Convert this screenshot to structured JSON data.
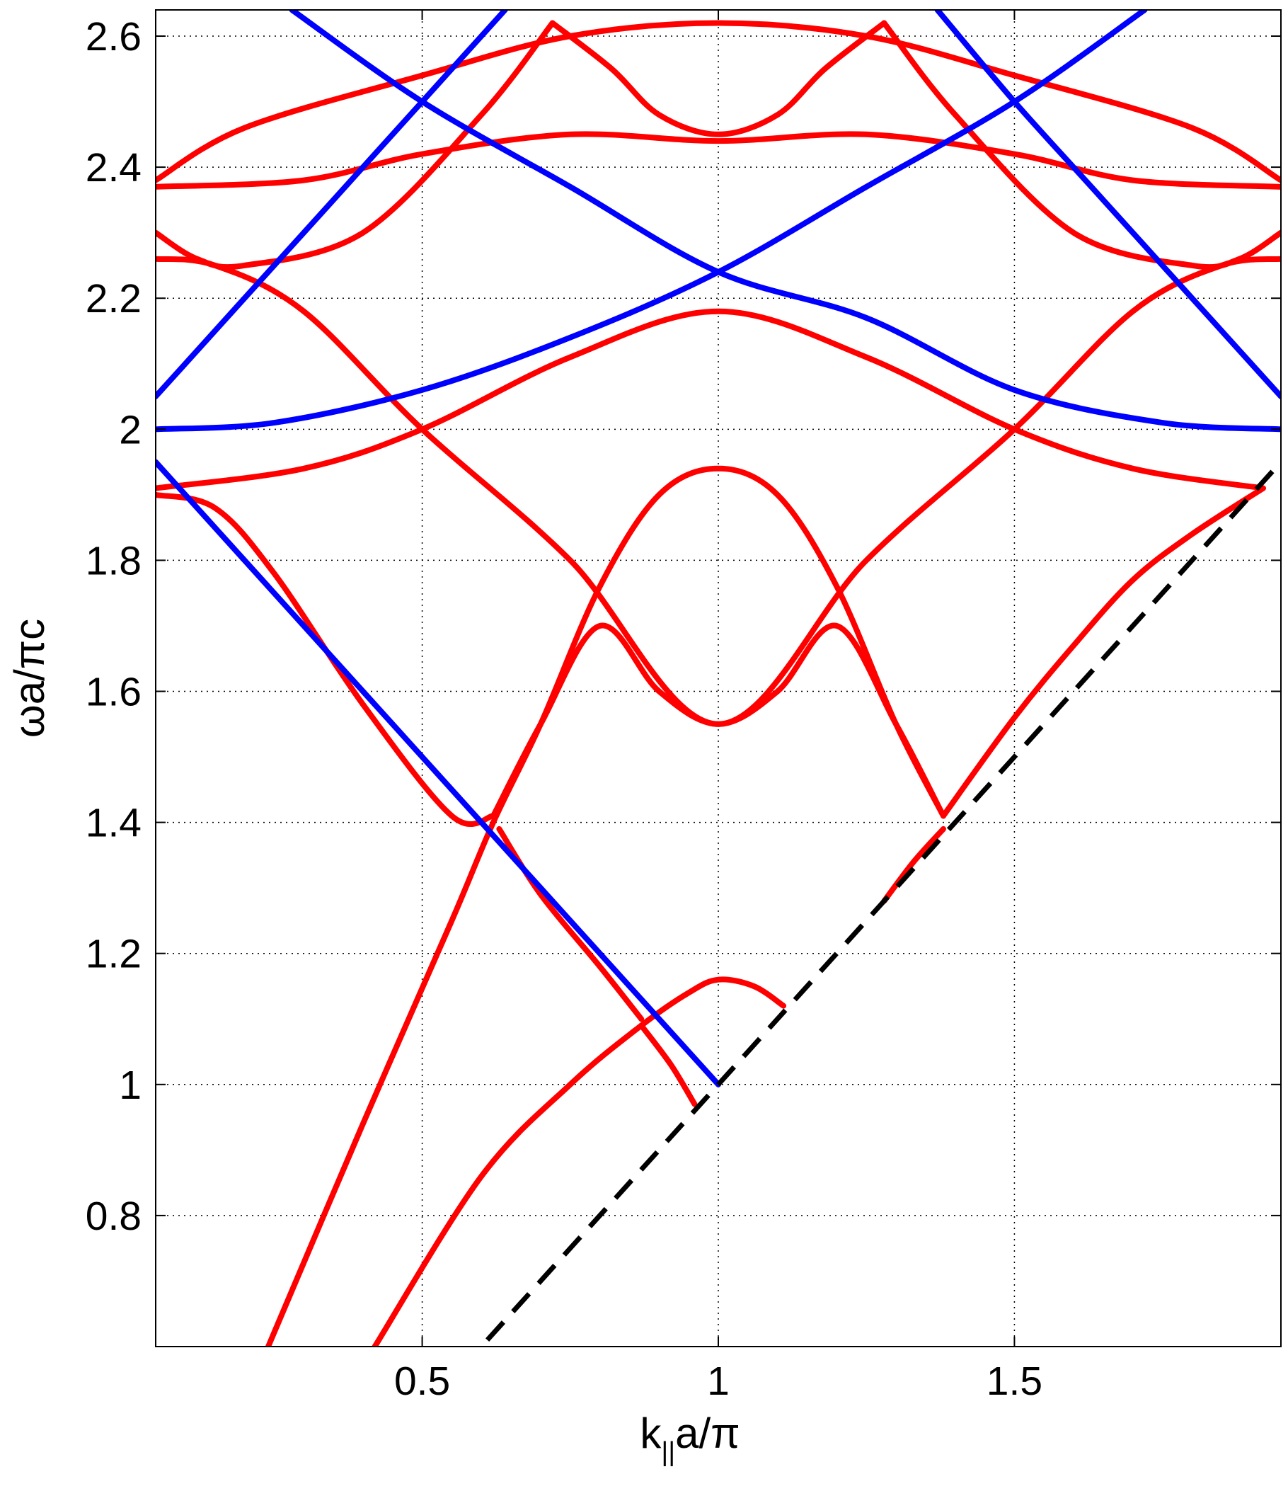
{
  "chart_data": {
    "type": "line",
    "title": "",
    "xlabel": {
      "main": "k",
      "subscript": "||",
      "rest": "a/π"
    },
    "ylabel": "ωa/πc",
    "xlim": [
      0.05,
      1.95
    ],
    "ylim": [
      0.6,
      2.64
    ],
    "grid": true,
    "grid_style": "dotted",
    "x_ticks": [
      {
        "value": 0.5,
        "label": "0.5"
      },
      {
        "value": 1.0,
        "label": "1"
      },
      {
        "value": 1.5,
        "label": "1.5"
      }
    ],
    "y_ticks": [
      {
        "value": 0.8,
        "label": "0.8"
      },
      {
        "value": 1.0,
        "label": "1"
      },
      {
        "value": 1.2,
        "label": "1.2"
      },
      {
        "value": 1.4,
        "label": "1.4"
      },
      {
        "value": 1.6,
        "label": "1.6"
      },
      {
        "value": 1.8,
        "label": "1.8"
      },
      {
        "value": 2.0,
        "label": "2"
      },
      {
        "value": 2.2,
        "label": "2.2"
      },
      {
        "value": 2.4,
        "label": "2.4"
      },
      {
        "value": 2.6,
        "label": "2.6"
      }
    ],
    "colors": {
      "red": "#ff0000",
      "blue": "#0000ff",
      "black": "#000000"
    },
    "series": [
      {
        "color": "red",
        "points": [
          [
            0.24,
            0.6
          ],
          [
            0.4,
            0.94
          ],
          [
            0.55,
            1.25
          ],
          [
            0.62,
            1.4
          ],
          [
            0.7,
            1.55
          ],
          [
            0.8,
            1.76
          ],
          [
            0.9,
            1.9
          ],
          [
            1.0,
            1.94
          ],
          [
            1.1,
            1.9
          ],
          [
            1.2,
            1.76
          ],
          [
            1.3,
            1.55
          ],
          [
            1.38,
            1.41
          ]
        ]
      },
      {
        "color": "red",
        "points": [
          [
            0.62,
            1.41
          ],
          [
            0.7,
            1.55
          ],
          [
            0.8,
            1.7
          ],
          [
            0.9,
            1.6
          ],
          [
            1.0,
            1.55
          ],
          [
            1.1,
            1.6
          ],
          [
            1.2,
            1.7
          ],
          [
            1.3,
            1.55
          ],
          [
            1.38,
            1.41
          ]
        ]
      },
      {
        "color": "red",
        "points": [
          [
            0.42,
            0.6
          ],
          [
            0.6,
            0.86
          ],
          [
            0.75,
            1.0
          ],
          [
            0.87,
            1.09
          ],
          [
            0.95,
            1.14
          ],
          [
            1.0,
            1.16
          ],
          [
            1.06,
            1.15
          ],
          [
            1.11,
            1.12
          ]
        ]
      },
      {
        "color": "red",
        "points": [
          [
            0.87,
            1.09
          ],
          [
            0.92,
            1.03
          ],
          [
            0.96,
            0.97
          ]
        ]
      },
      {
        "color": "red",
        "points": [
          [
            0.63,
            1.39
          ],
          [
            0.7,
            1.29
          ],
          [
            0.8,
            1.18
          ],
          [
            0.87,
            1.1
          ]
        ]
      },
      {
        "color": "red",
        "points": [
          [
            1.38,
            1.41
          ],
          [
            1.5,
            1.56
          ],
          [
            1.6,
            1.67
          ],
          [
            1.7,
            1.77
          ],
          [
            1.8,
            1.84
          ],
          [
            1.92,
            1.91
          ]
        ]
      },
      {
        "color": "red",
        "points": [
          [
            1.28,
            1.28
          ],
          [
            1.33,
            1.34
          ],
          [
            1.38,
            1.39
          ]
        ]
      },
      {
        "color": "red",
        "points": [
          [
            0.05,
            1.9
          ],
          [
            0.15,
            1.88
          ],
          [
            0.25,
            1.78
          ],
          [
            0.4,
            1.58
          ],
          [
            0.55,
            1.41
          ],
          [
            0.62,
            1.41
          ]
        ]
      },
      {
        "color": "red",
        "points": [
          [
            0.05,
            1.91
          ],
          [
            0.3,
            1.94
          ],
          [
            0.5,
            2.0
          ],
          [
            0.75,
            2.11
          ],
          [
            1.0,
            2.18
          ],
          [
            1.25,
            2.11
          ],
          [
            1.5,
            2.0
          ],
          [
            1.7,
            1.94
          ],
          [
            1.92,
            1.91
          ]
        ]
      },
      {
        "color": "red",
        "points": [
          [
            0.05,
            2.26
          ],
          [
            0.15,
            2.25
          ],
          [
            0.3,
            2.18
          ],
          [
            0.5,
            2.0
          ],
          [
            0.75,
            1.8
          ],
          [
            1.0,
            1.55
          ],
          [
            1.25,
            1.8
          ],
          [
            1.5,
            2.0
          ],
          [
            1.7,
            2.18
          ],
          [
            1.85,
            2.25
          ],
          [
            1.95,
            2.26
          ]
        ]
      },
      {
        "color": "red",
        "points": [
          [
            0.05,
            2.3
          ],
          [
            0.12,
            2.26
          ],
          [
            0.2,
            2.25
          ],
          [
            0.4,
            2.3
          ],
          [
            0.6,
            2.48
          ],
          [
            0.72,
            2.62
          ]
        ]
      },
      {
        "color": "red",
        "points": [
          [
            0.72,
            2.62
          ],
          [
            0.82,
            2.55
          ],
          [
            0.9,
            2.48
          ],
          [
            1.0,
            2.45
          ],
          [
            1.1,
            2.48
          ],
          [
            1.18,
            2.55
          ],
          [
            1.28,
            2.62
          ]
        ]
      },
      {
        "color": "red",
        "points": [
          [
            1.28,
            2.62
          ],
          [
            1.4,
            2.48
          ],
          [
            1.6,
            2.3
          ],
          [
            1.8,
            2.25
          ],
          [
            1.88,
            2.26
          ],
          [
            1.95,
            2.3
          ]
        ]
      },
      {
        "color": "red",
        "points": [
          [
            0.05,
            2.37
          ],
          [
            0.3,
            2.38
          ],
          [
            0.5,
            2.42
          ],
          [
            0.75,
            2.45
          ],
          [
            1.0,
            2.44
          ],
          [
            1.25,
            2.45
          ],
          [
            1.5,
            2.42
          ],
          [
            1.7,
            2.38
          ],
          [
            1.95,
            2.37
          ]
        ]
      },
      {
        "color": "red",
        "points": [
          [
            0.05,
            2.38
          ],
          [
            0.2,
            2.46
          ],
          [
            0.5,
            2.54
          ],
          [
            0.75,
            2.6
          ],
          [
            1.0,
            2.62
          ],
          [
            1.25,
            2.6
          ],
          [
            1.5,
            2.54
          ],
          [
            1.8,
            2.46
          ],
          [
            1.95,
            2.38
          ]
        ]
      },
      {
        "color": "blue",
        "points": [
          [
            0.05,
            1.95
          ],
          [
            1.0,
            1.0
          ]
        ]
      },
      {
        "color": "blue",
        "points": [
          [
            0.05,
            2.05
          ],
          [
            0.35,
            2.35
          ],
          [
            0.5,
            2.5
          ],
          [
            0.64,
            2.64
          ]
        ]
      },
      {
        "color": "blue",
        "points": [
          [
            0.28,
            2.64
          ],
          [
            0.5,
            2.5
          ],
          [
            0.75,
            2.37
          ],
          [
            1.0,
            2.24
          ],
          [
            1.25,
            2.17
          ],
          [
            1.5,
            2.06
          ],
          [
            1.75,
            2.01
          ],
          [
            1.95,
            2.0
          ]
        ]
      },
      {
        "color": "blue",
        "points": [
          [
            0.05,
            2.0
          ],
          [
            0.25,
            2.01
          ],
          [
            0.5,
            2.06
          ],
          [
            0.75,
            2.14
          ],
          [
            1.0,
            2.24
          ],
          [
            1.25,
            2.37
          ],
          [
            1.5,
            2.5
          ],
          [
            1.72,
            2.64
          ]
        ]
      },
      {
        "color": "blue",
        "points": [
          [
            1.37,
            2.64
          ],
          [
            1.5,
            2.5
          ],
          [
            1.65,
            2.35
          ],
          [
            1.95,
            2.05
          ]
        ]
      },
      {
        "color": "black",
        "dashed": true,
        "points": [
          [
            0.61,
            0.61
          ],
          [
            1.95,
            1.95
          ]
        ]
      }
    ]
  }
}
